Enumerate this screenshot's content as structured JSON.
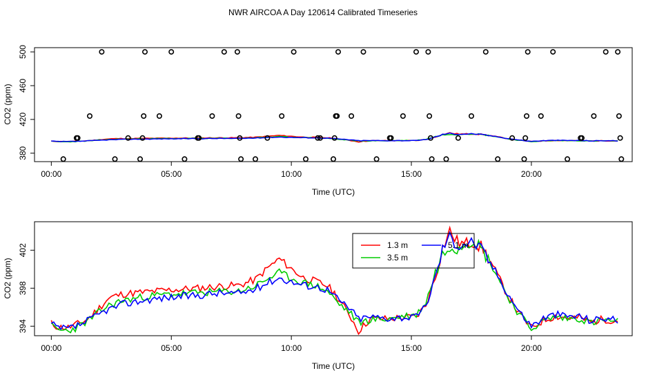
{
  "title": "NWR AIRCOA A  Day 120614  Calibrated Timeseries",
  "chart_data": [
    {
      "type": "line",
      "panel": "top",
      "xlabel": "Time (UTC)",
      "ylabel": "CO2 (ppm)",
      "xlim": [
        -0.7,
        24.2
      ],
      "ylim": [
        370,
        505
      ],
      "x_ticks": [
        0,
        5,
        10,
        15,
        20
      ],
      "x_tick_labels": [
        "00:00",
        "05:00",
        "10:00",
        "15:00",
        "20:00"
      ],
      "y_ticks": [
        380,
        420,
        460,
        500
      ],
      "y_tick_labels": [
        "380",
        "420",
        "460",
        "500"
      ],
      "colors": {
        "1.3 m": "#ff0000",
        "3.5 m": "#00cc00",
        "5.1 m": "#0000ff",
        "cal": "#000000"
      },
      "cal_points": [
        {
          "x": 0.5,
          "y": 373
        },
        {
          "x": 1.05,
          "y": 398
        },
        {
          "x": 1.1,
          "y": 398
        },
        {
          "x": 1.6,
          "y": 424
        },
        {
          "x": 2.1,
          "y": 500
        },
        {
          "x": 2.65,
          "y": 373
        },
        {
          "x": 3.2,
          "y": 398
        },
        {
          "x": 3.7,
          "y": 373
        },
        {
          "x": 3.8,
          "y": 398
        },
        {
          "x": 3.85,
          "y": 424
        },
        {
          "x": 3.9,
          "y": 500
        },
        {
          "x": 4.5,
          "y": 424
        },
        {
          "x": 5.0,
          "y": 500
        },
        {
          "x": 5.55,
          "y": 373
        },
        {
          "x": 6.1,
          "y": 398
        },
        {
          "x": 6.15,
          "y": 398
        },
        {
          "x": 6.7,
          "y": 424
        },
        {
          "x": 7.2,
          "y": 500
        },
        {
          "x": 7.75,
          "y": 500
        },
        {
          "x": 7.8,
          "y": 424
        },
        {
          "x": 7.85,
          "y": 398
        },
        {
          "x": 7.9,
          "y": 373
        },
        {
          "x": 8.5,
          "y": 373
        },
        {
          "x": 9.0,
          "y": 398
        },
        {
          "x": 9.6,
          "y": 424
        },
        {
          "x": 10.1,
          "y": 500
        },
        {
          "x": 10.6,
          "y": 373
        },
        {
          "x": 11.1,
          "y": 398
        },
        {
          "x": 11.2,
          "y": 398
        },
        {
          "x": 11.75,
          "y": 373
        },
        {
          "x": 11.8,
          "y": 398
        },
        {
          "x": 11.85,
          "y": 424
        },
        {
          "x": 11.9,
          "y": 424
        },
        {
          "x": 11.95,
          "y": 500
        },
        {
          "x": 12.5,
          "y": 424
        },
        {
          "x": 13.0,
          "y": 500
        },
        {
          "x": 13.55,
          "y": 373
        },
        {
          "x": 14.1,
          "y": 398
        },
        {
          "x": 14.15,
          "y": 398
        },
        {
          "x": 14.65,
          "y": 424
        },
        {
          "x": 15.2,
          "y": 500
        },
        {
          "x": 15.7,
          "y": 500
        },
        {
          "x": 15.75,
          "y": 424
        },
        {
          "x": 15.8,
          "y": 398
        },
        {
          "x": 15.85,
          "y": 373
        },
        {
          "x": 16.45,
          "y": 373
        },
        {
          "x": 16.95,
          "y": 398
        },
        {
          "x": 17.5,
          "y": 424
        },
        {
          "x": 18.1,
          "y": 500
        },
        {
          "x": 18.6,
          "y": 373
        },
        {
          "x": 19.2,
          "y": 398
        },
        {
          "x": 19.7,
          "y": 373
        },
        {
          "x": 19.75,
          "y": 398
        },
        {
          "x": 19.8,
          "y": 424
        },
        {
          "x": 19.85,
          "y": 500
        },
        {
          "x": 20.4,
          "y": 424
        },
        {
          "x": 20.9,
          "y": 500
        },
        {
          "x": 21.5,
          "y": 373
        },
        {
          "x": 22.05,
          "y": 398
        },
        {
          "x": 22.1,
          "y": 398
        },
        {
          "x": 22.6,
          "y": 424
        },
        {
          "x": 23.1,
          "y": 500
        },
        {
          "x": 23.6,
          "y": 500
        },
        {
          "x": 23.65,
          "y": 424
        },
        {
          "x": 23.7,
          "y": 398
        },
        {
          "x": 23.75,
          "y": 373
        }
      ]
    },
    {
      "type": "line",
      "panel": "bottom",
      "xlabel": "Time (UTC)",
      "ylabel": "CO2 (ppm)",
      "xlim": [
        -0.7,
        24.2
      ],
      "ylim": [
        393,
        405
      ],
      "x_ticks": [
        0,
        5,
        10,
        15,
        20
      ],
      "x_tick_labels": [
        "00:00",
        "05:00",
        "10:00",
        "15:00",
        "20:00"
      ],
      "y_ticks": [
        394,
        398,
        402
      ],
      "y_tick_labels": [
        "394",
        "398",
        "402"
      ],
      "legend": [
        {
          "label": "1.3 m",
          "color": "#ff0000"
        },
        {
          "label": "3.5 m",
          "color": "#00cc00"
        },
        {
          "label": "5.1 m",
          "color": "#0000ff"
        }
      ],
      "legend_position": "top-right",
      "anchors": [
        {
          "x": 0.0,
          "y": 394.2
        },
        {
          "x": 0.3,
          "y": 393.8
        },
        {
          "x": 0.7,
          "y": 393.8
        },
        {
          "x": 1.2,
          "y": 394.3
        },
        {
          "x": 1.7,
          "y": 395.0
        },
        {
          "x": 2.3,
          "y": 396.0
        },
        {
          "x": 3.0,
          "y": 396.6
        },
        {
          "x": 4.0,
          "y": 397.0
        },
        {
          "x": 5.0,
          "y": 397.2
        },
        {
          "x": 6.0,
          "y": 397.3
        },
        {
          "x": 7.0,
          "y": 397.5
        },
        {
          "x": 7.8,
          "y": 397.6
        },
        {
          "x": 8.5,
          "y": 398.2
        },
        {
          "x": 9.0,
          "y": 399.0
        },
        {
          "x": 9.5,
          "y": 399.6
        },
        {
          "x": 10.0,
          "y": 399.0
        },
        {
          "x": 10.5,
          "y": 398.5
        },
        {
          "x": 11.0,
          "y": 398.2
        },
        {
          "x": 11.5,
          "y": 397.8
        },
        {
          "x": 12.0,
          "y": 396.6
        },
        {
          "x": 12.4,
          "y": 395.8
        },
        {
          "x": 12.8,
          "y": 394.6
        },
        {
          "x": 13.3,
          "y": 394.8
        },
        {
          "x": 14.0,
          "y": 394.7
        },
        {
          "x": 14.6,
          "y": 394.8
        },
        {
          "x": 15.2,
          "y": 394.8
        },
        {
          "x": 15.6,
          "y": 396.0
        },
        {
          "x": 16.0,
          "y": 399.0
        },
        {
          "x": 16.3,
          "y": 401.5
        },
        {
          "x": 16.6,
          "y": 402.8
        },
        {
          "x": 16.9,
          "y": 402.3
        },
        {
          "x": 17.2,
          "y": 402.6
        },
        {
          "x": 17.6,
          "y": 402.8
        },
        {
          "x": 18.0,
          "y": 401.8
        },
        {
          "x": 18.5,
          "y": 399.8
        },
        {
          "x": 19.0,
          "y": 397.5
        },
        {
          "x": 19.5,
          "y": 395.5
        },
        {
          "x": 20.0,
          "y": 394.0
        },
        {
          "x": 20.5,
          "y": 394.8
        },
        {
          "x": 21.0,
          "y": 395.2
        },
        {
          "x": 21.5,
          "y": 395.0
        },
        {
          "x": 22.0,
          "y": 395.0
        },
        {
          "x": 22.5,
          "y": 394.5
        },
        {
          "x": 23.0,
          "y": 394.8
        },
        {
          "x": 23.5,
          "y": 394.6
        }
      ],
      "series": [
        {
          "name": "1.3 m",
          "color": "#ff0000",
          "offset": [
            [
              0,
              0.1
            ],
            [
              1.5,
              0.0
            ],
            [
              2.5,
              0.9
            ],
            [
              4.0,
              0.6
            ],
            [
              7.0,
              0.7
            ],
            [
              8.5,
              0.7
            ],
            [
              9.5,
              1.5
            ],
            [
              10.5,
              0.6
            ],
            [
              11.8,
              0.4
            ],
            [
              12.8,
              -1.1
            ],
            [
              13.3,
              0.0
            ],
            [
              15.5,
              0.2
            ],
            [
              16.0,
              0.3
            ],
            [
              16.6,
              1.2
            ],
            [
              17.2,
              0.0
            ],
            [
              18.0,
              0.3
            ],
            [
              19.0,
              -0.2
            ],
            [
              20.0,
              -0.2
            ],
            [
              24.0,
              0.0
            ]
          ],
          "seed": 11
        },
        {
          "name": "3.5 m",
          "color": "#00cc00",
          "offset": [
            [
              0,
              -0.2
            ],
            [
              1.0,
              -0.3
            ],
            [
              2.5,
              0.1
            ],
            [
              6.0,
              0.2
            ],
            [
              9.0,
              0.0
            ],
            [
              11.0,
              0.1
            ],
            [
              12.0,
              -0.3
            ],
            [
              13.0,
              -0.2
            ],
            [
              16.0,
              0.6
            ],
            [
              16.5,
              -0.3
            ],
            [
              17.5,
              0.3
            ],
            [
              19.0,
              -0.3
            ],
            [
              24.0,
              -0.1
            ]
          ],
          "seed": 23
        },
        {
          "name": "5.1 m",
          "color": "#0000ff",
          "offset": [
            [
              0,
              0.0
            ],
            [
              2.5,
              -0.3
            ],
            [
              7.0,
              0.0
            ],
            [
              9.5,
              -0.5
            ],
            [
              11.0,
              0.0
            ],
            [
              12.8,
              0.2
            ],
            [
              16.0,
              0.1
            ],
            [
              16.4,
              0.8
            ],
            [
              17.0,
              0.2
            ],
            [
              18.0,
              0.0
            ],
            [
              24.0,
              0.1
            ]
          ],
          "seed": 37
        }
      ]
    }
  ]
}
